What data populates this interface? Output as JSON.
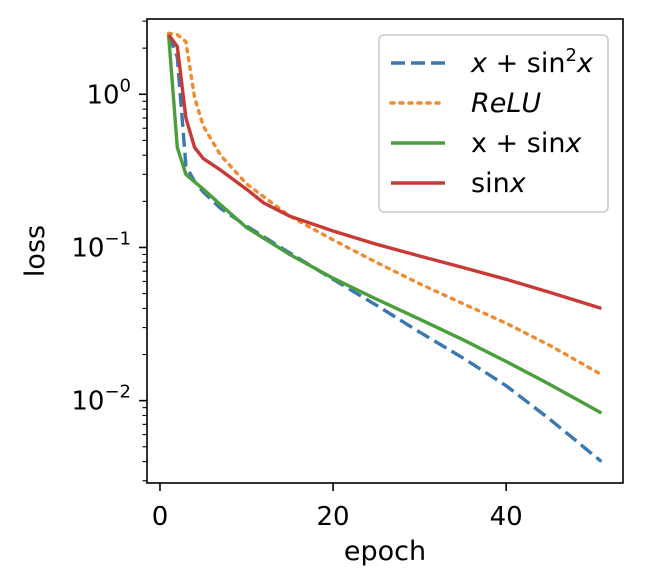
{
  "chart_data": {
    "type": "line",
    "xlabel": "epoch",
    "ylabel": "loss",
    "yscale": "log",
    "xlim": [
      -1.5,
      53.5
    ],
    "ylim": [
      0.0029,
      3.1
    ],
    "xticks": [
      {
        "value": 0,
        "label": "0"
      },
      {
        "value": 20,
        "label": "20"
      },
      {
        "value": 40,
        "label": "40"
      }
    ],
    "yticks": [
      {
        "value": 1,
        "base": "10",
        "exp": "0"
      },
      {
        "value": 0.1,
        "base": "10",
        "exp": "−1"
      },
      {
        "value": 0.01,
        "base": "10",
        "exp": "−2"
      }
    ],
    "grid": false,
    "legend": {
      "placement": "top-right",
      "entries": [
        {
          "key": "x_sin2",
          "parts": [
            {
              "t": "x",
              "i": true
            },
            {
              "t": " + sin"
            },
            {
              "t": "2",
              "sup": true
            },
            {
              "t": "x",
              "i": true
            }
          ]
        },
        {
          "key": "relu",
          "parts": [
            {
              "t": "ReLU",
              "i": true
            }
          ]
        },
        {
          "key": "x_sin",
          "parts": [
            {
              "t": "x + sin"
            },
            {
              "t": "x",
              "i": true
            }
          ]
        },
        {
          "key": "sin",
          "parts": [
            {
              "t": "sin"
            },
            {
              "t": "x",
              "i": true
            }
          ]
        }
      ]
    },
    "series": [
      {
        "key": "x_sin2",
        "color": "#3a78b3",
        "dash": "dashed",
        "points": [
          [
            1,
            2.45
          ],
          [
            2,
            1.75
          ],
          [
            3,
            0.34
          ],
          [
            4,
            0.27
          ],
          [
            5,
            0.23
          ],
          [
            7,
            0.18
          ],
          [
            10,
            0.138
          ],
          [
            15,
            0.092
          ],
          [
            20,
            0.062
          ],
          [
            25,
            0.042
          ],
          [
            30,
            0.028
          ],
          [
            35,
            0.019
          ],
          [
            40,
            0.0125
          ],
          [
            45,
            0.0076
          ],
          [
            51,
            0.004
          ]
        ]
      },
      {
        "key": "relu",
        "color": "#f28a2e",
        "dash": "dotted",
        "points": [
          [
            1,
            2.5
          ],
          [
            2,
            2.45
          ],
          [
            3,
            2.2
          ],
          [
            4,
            0.95
          ],
          [
            5,
            0.62
          ],
          [
            7,
            0.4
          ],
          [
            10,
            0.26
          ],
          [
            15,
            0.16
          ],
          [
            20,
            0.112
          ],
          [
            25,
            0.08
          ],
          [
            30,
            0.058
          ],
          [
            35,
            0.043
          ],
          [
            40,
            0.032
          ],
          [
            45,
            0.023
          ],
          [
            51,
            0.0148
          ]
        ]
      },
      {
        "key": "x_sin",
        "color": "#4a9e3c",
        "dash": "solid",
        "points": [
          [
            1,
            2.45
          ],
          [
            2,
            0.45
          ],
          [
            3,
            0.3
          ],
          [
            5,
            0.24
          ],
          [
            7,
            0.19
          ],
          [
            10,
            0.135
          ],
          [
            15,
            0.09
          ],
          [
            20,
            0.063
          ],
          [
            25,
            0.046
          ],
          [
            30,
            0.034
          ],
          [
            35,
            0.025
          ],
          [
            40,
            0.018
          ],
          [
            45,
            0.0128
          ],
          [
            51,
            0.0083
          ]
        ]
      },
      {
        "key": "sin",
        "color": "#c83a35",
        "dash": "solid",
        "points": [
          [
            1,
            2.45
          ],
          [
            2,
            2.05
          ],
          [
            3,
            0.7
          ],
          [
            4,
            0.45
          ],
          [
            5,
            0.38
          ],
          [
            7,
            0.32
          ],
          [
            10,
            0.24
          ],
          [
            12,
            0.195
          ],
          [
            15,
            0.16
          ],
          [
            20,
            0.128
          ],
          [
            25,
            0.105
          ],
          [
            30,
            0.088
          ],
          [
            35,
            0.074
          ],
          [
            40,
            0.062
          ],
          [
            45,
            0.051
          ],
          [
            51,
            0.04
          ]
        ]
      }
    ]
  }
}
